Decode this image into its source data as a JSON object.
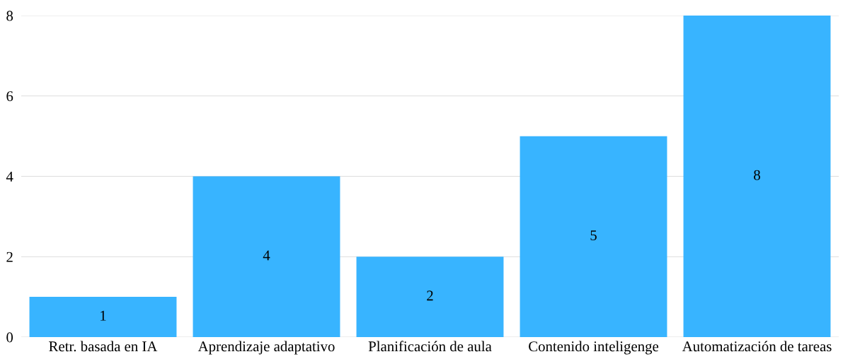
{
  "chart_data": {
    "type": "bar",
    "categories": [
      "Retr. basada en IA",
      "Aprendizaje adaptativo",
      "Planificación de aula",
      "Contenido inteligenge",
      "Automatización de tareas"
    ],
    "values": [
      1,
      4,
      2,
      5,
      8
    ],
    "color": "#38b4ff",
    "ylim": [
      0,
      8
    ],
    "yticks": [
      0,
      2,
      4,
      6,
      8
    ],
    "grid": "y",
    "data_labels": true
  }
}
